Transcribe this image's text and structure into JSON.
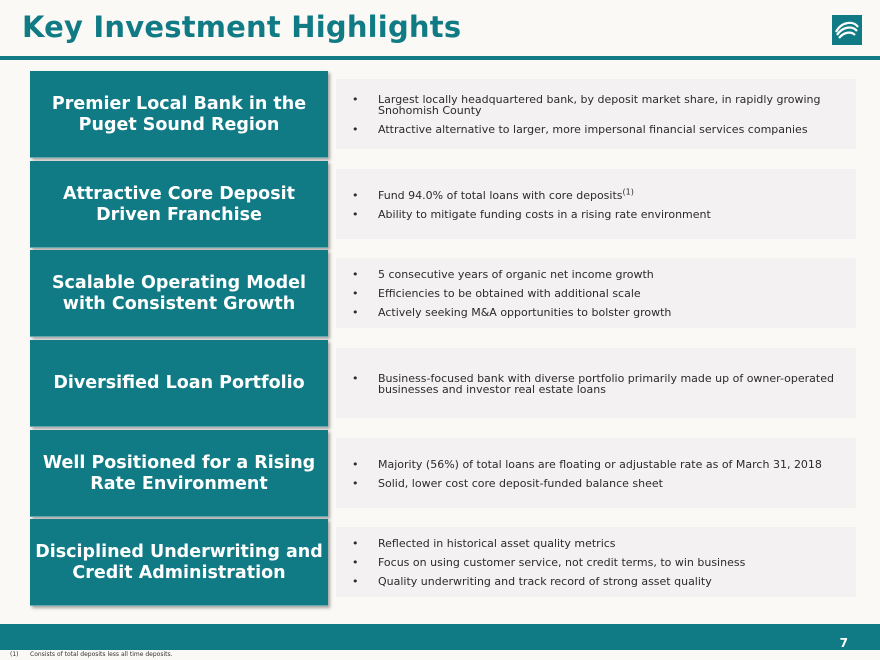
{
  "title": "Key Investment Highlights",
  "logo_icon": "bank-swirl-logo",
  "colors": {
    "accent": "#107b85",
    "panel": "#f3f1f1",
    "background": "#fbf9f5"
  },
  "rows": [
    {
      "label": "Premier Local Bank in the\nPuget Sound Region",
      "bullets": [
        {
          "text": "Largest locally headquartered bank, by deposit market share, in rapidly growing Snohomish County"
        },
        {
          "text": "Attractive alternative to larger, more impersonal financial services companies"
        }
      ]
    },
    {
      "label": "Attractive Core Deposit\nDriven Franchise",
      "bullets": [
        {
          "text": "Fund 94.0% of total loans with core deposits",
          "sup": "(1)"
        },
        {
          "text": "Ability to mitigate funding costs in a rising rate environment"
        }
      ]
    },
    {
      "label": "Scalable Operating Model\nwith Consistent Growth",
      "bullets": [
        {
          "text": "5 consecutive years of organic net income growth"
        },
        {
          "text": "Efficiencies to be obtained with additional scale"
        },
        {
          "text": "Actively seeking M&A opportunities to bolster growth"
        }
      ]
    },
    {
      "label": "Diversified Loan Portfolio",
      "bullets": [
        {
          "text": "Business-focused bank with diverse portfolio primarily made up of owner-operated businesses and investor real estate loans"
        }
      ]
    },
    {
      "label": "Well Positioned for a Rising\nRate Environment",
      "bullets": [
        {
          "text": "Majority (56%) of total loans are floating or adjustable rate as of March 31, 2018"
        },
        {
          "text": "Solid, lower cost core deposit-funded balance sheet"
        }
      ]
    },
    {
      "label": "Disciplined Underwriting and\nCredit Administration",
      "bullets": [
        {
          "text": "Reflected in historical asset quality metrics"
        },
        {
          "text": "Focus on using customer service, not credit terms, to win business"
        },
        {
          "text": "Quality underwriting and track record of strong asset quality"
        }
      ]
    }
  ],
  "page_number": "7",
  "footnote": {
    "marker": "(1)",
    "text": "Consists of total deposits less all time deposits."
  }
}
